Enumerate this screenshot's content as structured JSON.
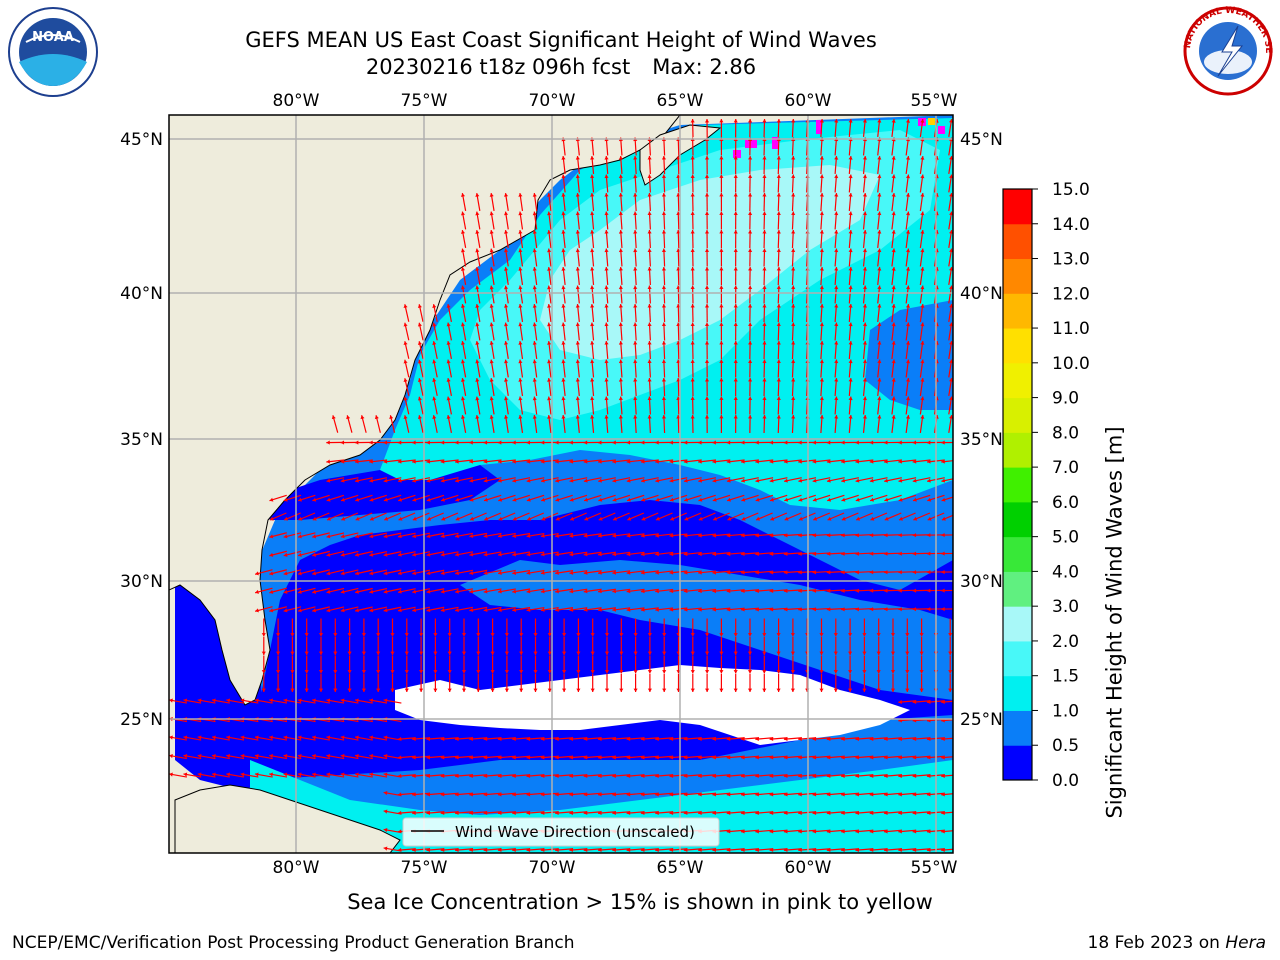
{
  "title": {
    "line1": "GEFS MEAN US East Coast Significant Height of Wind Waves",
    "run": "20230216 t18z 096h fcst",
    "max": "Max: 2.86"
  },
  "logos": {
    "left_text": "NOAA",
    "right_text": "NATIONAL WEATHER SERVICE"
  },
  "legend_label": "Wind Wave Direction (unscaled)",
  "caption": "Sea Ice Concentration > 15% is shown in pink to yellow",
  "footer": {
    "left": "NCEP/EMC/Verification Post Processing Product Generation Branch",
    "date": "18 Feb 2023 on ",
    "host": "Hera"
  },
  "colorbar": {
    "label": "Significant Height of Wind Waves [m]",
    "ticks": [
      "0.0",
      "0.5",
      "1.0",
      "1.5",
      "2.0",
      "3.0",
      "4.0",
      "5.0",
      "6.0",
      "7.0",
      "8.0",
      "9.0",
      "10.0",
      "11.0",
      "12.0",
      "13.0",
      "14.0",
      "15.0"
    ],
    "colors": [
      "#0000ff",
      "#0a7ef8",
      "#00f0f0",
      "#48f8f8",
      "#a8f8f8",
      "#60f080",
      "#38e838",
      "#00d000",
      "#40f000",
      "#b0f000",
      "#d8f000",
      "#f0f000",
      "#ffe000",
      "#ffb800",
      "#ff8800",
      "#ff5000",
      "#ff0000"
    ]
  },
  "map": {
    "lon_labels": [
      "80°W",
      "75°W",
      "70°W",
      "65°W",
      "60°W",
      "55°W"
    ],
    "lat_labels": [
      "45°N",
      "40°N",
      "35°N",
      "30°N",
      "25°N"
    ],
    "colors": {
      "land": "#eeecdc",
      "water_0": "#0000ff",
      "water_05": "#0a7ef8",
      "water_10": "#00f0f0",
      "water_15": "#48f8f8",
      "water_20": "#a8f8f8",
      "arrow": "#ff0000",
      "ice": "#ff00ff"
    },
    "max_wave_height_m": 2.86
  }
}
